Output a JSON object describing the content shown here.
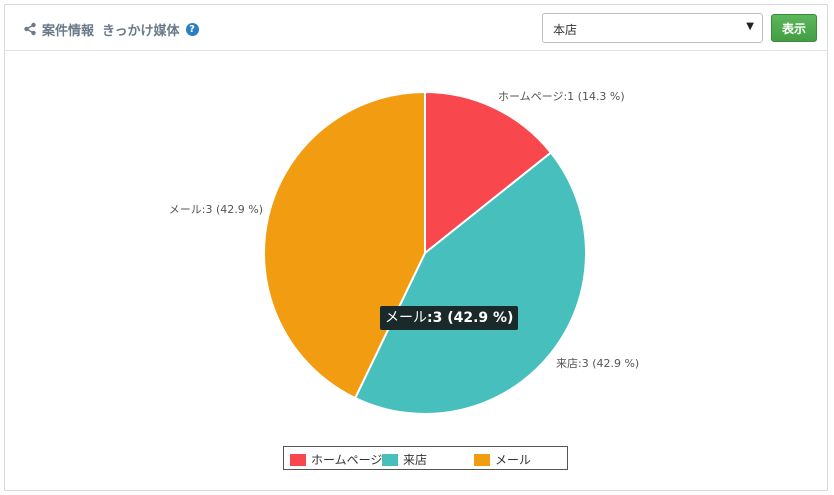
{
  "header": {
    "title_part1": "案件情報",
    "title_part2": "きっかけ媒体",
    "help_glyph": "?",
    "store_select_value": "本店",
    "show_button_label": "表示"
  },
  "chart_data": {
    "type": "pie",
    "categories": [
      "ホームページ",
      "来店",
      "メール"
    ],
    "values": [
      1,
      3,
      3
    ],
    "percentages": [
      14.3,
      42.9,
      42.9
    ],
    "colors": [
      "#f9474e",
      "#47bfbc",
      "#f29c12"
    ],
    "slice_labels": [
      "ホームページ:1 (14.3 %)",
      "来店:3 (42.9 %)",
      "メール:3 (42.9 %)"
    ],
    "legend_position": "bottom",
    "legend_entries": [
      "ホームページ",
      "来店",
      "メール"
    ]
  },
  "tooltip": {
    "series": "メール",
    "value_text": ":3 (42.9 %)"
  }
}
